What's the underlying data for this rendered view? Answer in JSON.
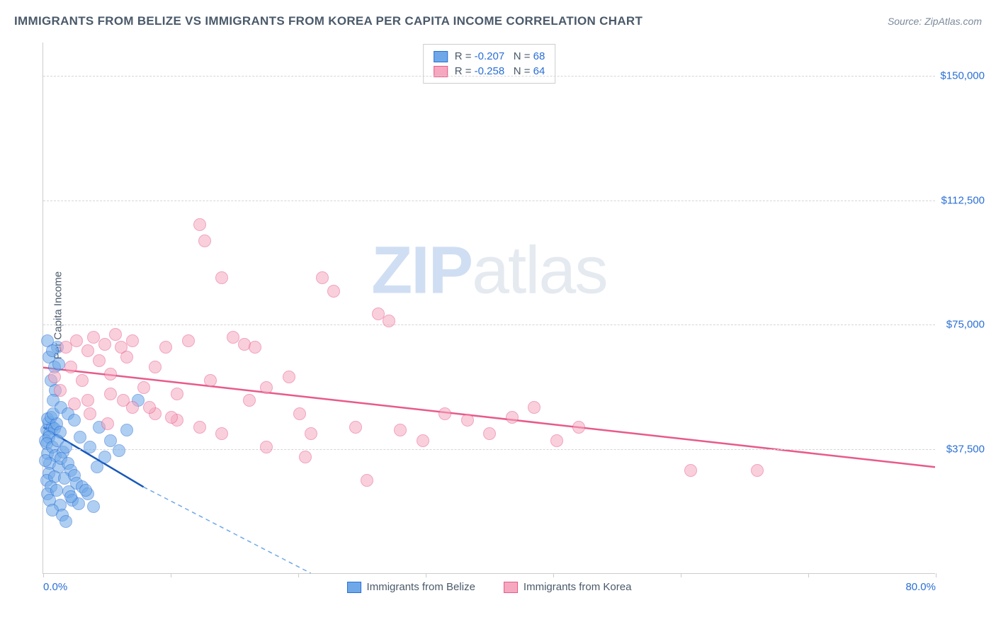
{
  "title": "IMMIGRANTS FROM BELIZE VS IMMIGRANTS FROM KOREA PER CAPITA INCOME CORRELATION CHART",
  "source": "Source: ZipAtlas.com",
  "ylabel": "Per Capita Income",
  "watermark_zip": "ZIP",
  "watermark_atlas": "atlas",
  "chart": {
    "type": "scatter",
    "background_color": "#ffffff",
    "grid_color": "#d5d5d5",
    "axis_color": "#cccccc",
    "label_color": "#4a5a6a",
    "tick_label_color": "#2a6fd6",
    "title_fontsize": 17,
    "label_fontsize": 15,
    "tick_fontsize": 15,
    "xlim": [
      0,
      80
    ],
    "ylim": [
      0,
      160000
    ],
    "ytick_values": [
      37500,
      75000,
      112500,
      150000
    ],
    "ytick_labels": [
      "$37,500",
      "$75,000",
      "$112,500",
      "$150,000"
    ],
    "xtick_values": [
      0,
      11.43,
      22.86,
      34.29,
      45.71,
      57.14,
      68.57,
      80
    ],
    "xtick_label_left": "0.0%",
    "xtick_label_right": "80.0%",
    "marker_radius": 9,
    "marker_opacity": 0.55,
    "line_width": 2.5
  },
  "series": [
    {
      "name": "Immigrants from Belize",
      "fill_color": "#6fa8e8",
      "stroke_color": "#2a6fd6",
      "line_color": "#1858b8",
      "dash_color": "#6fa8e8",
      "regression": {
        "x1": 0,
        "y1": 44000,
        "x2": 9,
        "y2": 26000,
        "dash_x2": 24,
        "dash_y2": 0
      },
      "stats": {
        "R": "-0.207",
        "N": "68"
      },
      "points": [
        [
          0.3,
          43000
        ],
        [
          0.5,
          45500
        ],
        [
          0.8,
          44000
        ],
        [
          0.4,
          46500
        ],
        [
          0.6,
          42000
        ],
        [
          1.0,
          43500
        ],
        [
          0.2,
          40000
        ],
        [
          0.7,
          47000
        ],
        [
          1.2,
          45000
        ],
        [
          0.5,
          41000
        ],
        [
          0.9,
          48000
        ],
        [
          0.3,
          39000
        ],
        [
          1.5,
          42500
        ],
        [
          0.4,
          36000
        ],
        [
          0.8,
          38000
        ],
        [
          1.1,
          35500
        ],
        [
          0.6,
          33000
        ],
        [
          1.3,
          40000
        ],
        [
          0.2,
          34000
        ],
        [
          1.8,
          36500
        ],
        [
          2.0,
          38000
        ],
        [
          1.4,
          32000
        ],
        [
          0.5,
          30000
        ],
        [
          1.6,
          34500
        ],
        [
          0.3,
          28000
        ],
        [
          2.2,
          33000
        ],
        [
          1.0,
          29000
        ],
        [
          2.5,
          31000
        ],
        [
          0.7,
          26000
        ],
        [
          1.9,
          28500
        ],
        [
          0.4,
          24000
        ],
        [
          2.8,
          29500
        ],
        [
          1.2,
          25000
        ],
        [
          3.0,
          27000
        ],
        [
          0.6,
          22000
        ],
        [
          2.3,
          24500
        ],
        [
          1.5,
          20500
        ],
        [
          3.5,
          26000
        ],
        [
          0.8,
          19000
        ],
        [
          2.6,
          22000
        ],
        [
          4.0,
          24000
        ],
        [
          1.7,
          17500
        ],
        [
          3.2,
          21000
        ],
        [
          2.0,
          15500
        ],
        [
          4.5,
          20000
        ],
        [
          0.5,
          65000
        ],
        [
          1.0,
          62000
        ],
        [
          1.3,
          68000
        ],
        [
          0.7,
          58000
        ],
        [
          1.1,
          55000
        ],
        [
          0.9,
          52000
        ],
        [
          1.6,
          50000
        ],
        [
          2.2,
          48000
        ],
        [
          2.8,
          46000
        ],
        [
          3.3,
          41000
        ],
        [
          4.2,
          38000
        ],
        [
          5.0,
          44000
        ],
        [
          5.5,
          35000
        ],
        [
          6.0,
          40000
        ],
        [
          6.8,
          37000
        ],
        [
          7.5,
          43000
        ],
        [
          0.4,
          70000
        ],
        [
          0.8,
          67000
        ],
        [
          1.4,
          63000
        ],
        [
          2.5,
          23000
        ],
        [
          3.8,
          25000
        ],
        [
          4.8,
          32000
        ],
        [
          8.5,
          52000
        ]
      ]
    },
    {
      "name": "Immigrants from Korea",
      "fill_color": "#f5a8c0",
      "stroke_color": "#e85a8a",
      "line_color": "#e85a8a",
      "dash_color": "#f5a8c0",
      "regression": {
        "x1": 0,
        "y1": 62000,
        "x2": 80,
        "y2": 32000
      },
      "stats": {
        "R": "-0.258",
        "N": "64"
      },
      "points": [
        [
          1.0,
          59000
        ],
        [
          2.0,
          68000
        ],
        [
          2.5,
          62000
        ],
        [
          3.0,
          70000
        ],
        [
          3.5,
          58000
        ],
        [
          4.0,
          67000
        ],
        [
          4.5,
          71000
        ],
        [
          5.0,
          64000
        ],
        [
          5.5,
          69000
        ],
        [
          6.0,
          60000
        ],
        [
          6.5,
          72000
        ],
        [
          7.0,
          68000
        ],
        [
          7.5,
          65000
        ],
        [
          8.0,
          70000
        ],
        [
          9.0,
          56000
        ],
        [
          10.0,
          62000
        ],
        [
          11.0,
          68000
        ],
        [
          12.0,
          54000
        ],
        [
          13.0,
          70000
        ],
        [
          14.0,
          105000
        ],
        [
          14.5,
          100000
        ],
        [
          15.0,
          58000
        ],
        [
          16.0,
          89000
        ],
        [
          17.0,
          71000
        ],
        [
          18.0,
          69000
        ],
        [
          18.5,
          52000
        ],
        [
          19.0,
          68000
        ],
        [
          20.0,
          56000
        ],
        [
          22.0,
          59000
        ],
        [
          23.0,
          48000
        ],
        [
          24.0,
          42000
        ],
        [
          25.0,
          89000
        ],
        [
          26.0,
          85000
        ],
        [
          28.0,
          44000
        ],
        [
          30.0,
          78000
        ],
        [
          32.0,
          43000
        ],
        [
          34.0,
          40000
        ],
        [
          36.0,
          48000
        ],
        [
          38.0,
          46000
        ],
        [
          40.0,
          42000
        ],
        [
          42.0,
          47000
        ],
        [
          44.0,
          50000
        ],
        [
          46.0,
          40000
        ],
        [
          48.0,
          44000
        ],
        [
          58.0,
          31000
        ],
        [
          4.0,
          52000
        ],
        [
          6.0,
          54000
        ],
        [
          8.0,
          50000
        ],
        [
          10.0,
          48000
        ],
        [
          12.0,
          46000
        ],
        [
          14.0,
          44000
        ],
        [
          16.0,
          42000
        ],
        [
          29.0,
          28000
        ],
        [
          31.0,
          76000
        ],
        [
          20.0,
          38000
        ],
        [
          1.5,
          55000
        ],
        [
          2.8,
          51000
        ],
        [
          4.2,
          48000
        ],
        [
          5.8,
          45000
        ],
        [
          7.2,
          52000
        ],
        [
          9.5,
          50000
        ],
        [
          11.5,
          47000
        ],
        [
          23.5,
          35000
        ],
        [
          64.0,
          31000
        ]
      ]
    }
  ],
  "legend_bottom": [
    "Immigrants from Belize",
    "Immigrants from Korea"
  ]
}
